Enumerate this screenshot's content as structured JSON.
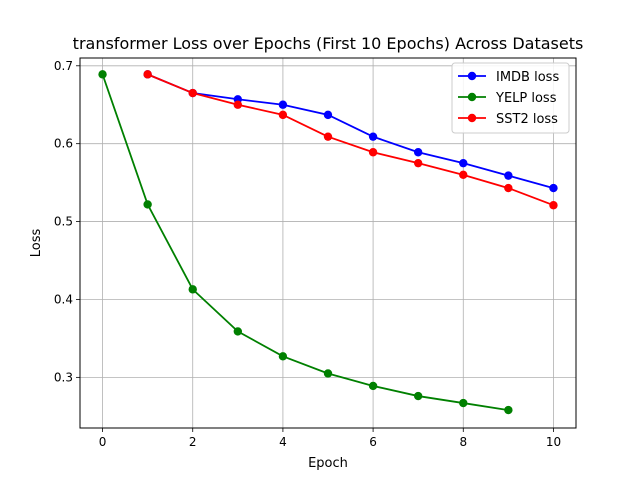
{
  "chart_data": {
    "type": "line",
    "title": "transformer Loss over Epochs (First 10 Epochs) Across Datasets",
    "xlabel": "Epoch",
    "ylabel": "Loss",
    "xlim": [
      -0.5,
      10.5
    ],
    "ylim": [
      0.235,
      0.71
    ],
    "xticks": [
      0,
      2,
      4,
      6,
      8,
      10
    ],
    "xtick_labels": [
      "0",
      "2",
      "4",
      "6",
      "8",
      "10"
    ],
    "yticks": [
      0.3,
      0.4,
      0.5,
      0.6,
      0.7
    ],
    "ytick_labels": [
      "0.3",
      "0.4",
      "0.5",
      "0.6",
      "0.7"
    ],
    "grid": true,
    "legend_position": "top-right",
    "series": [
      {
        "name": "IMDB loss",
        "color": "#0000ff",
        "x": [
          1,
          2,
          3,
          4,
          5,
          6,
          7,
          8,
          9,
          10
        ],
        "y": [
          0.689,
          0.665,
          0.657,
          0.65,
          0.637,
          0.609,
          0.589,
          0.575,
          0.559,
          0.543
        ]
      },
      {
        "name": "YELP loss",
        "color": "#008000",
        "x": [
          0,
          1,
          2,
          3,
          4,
          5,
          6,
          7,
          8,
          9
        ],
        "y": [
          0.689,
          0.522,
          0.413,
          0.359,
          0.327,
          0.305,
          0.289,
          0.276,
          0.267,
          0.258
        ]
      },
      {
        "name": "SST2 loss",
        "color": "#ff0000",
        "x": [
          1,
          2,
          3,
          4,
          5,
          6,
          7,
          8,
          9,
          10
        ],
        "y": [
          0.689,
          0.665,
          0.65,
          0.637,
          0.609,
          0.589,
          0.575,
          0.56,
          0.543,
          0.521
        ]
      }
    ]
  }
}
